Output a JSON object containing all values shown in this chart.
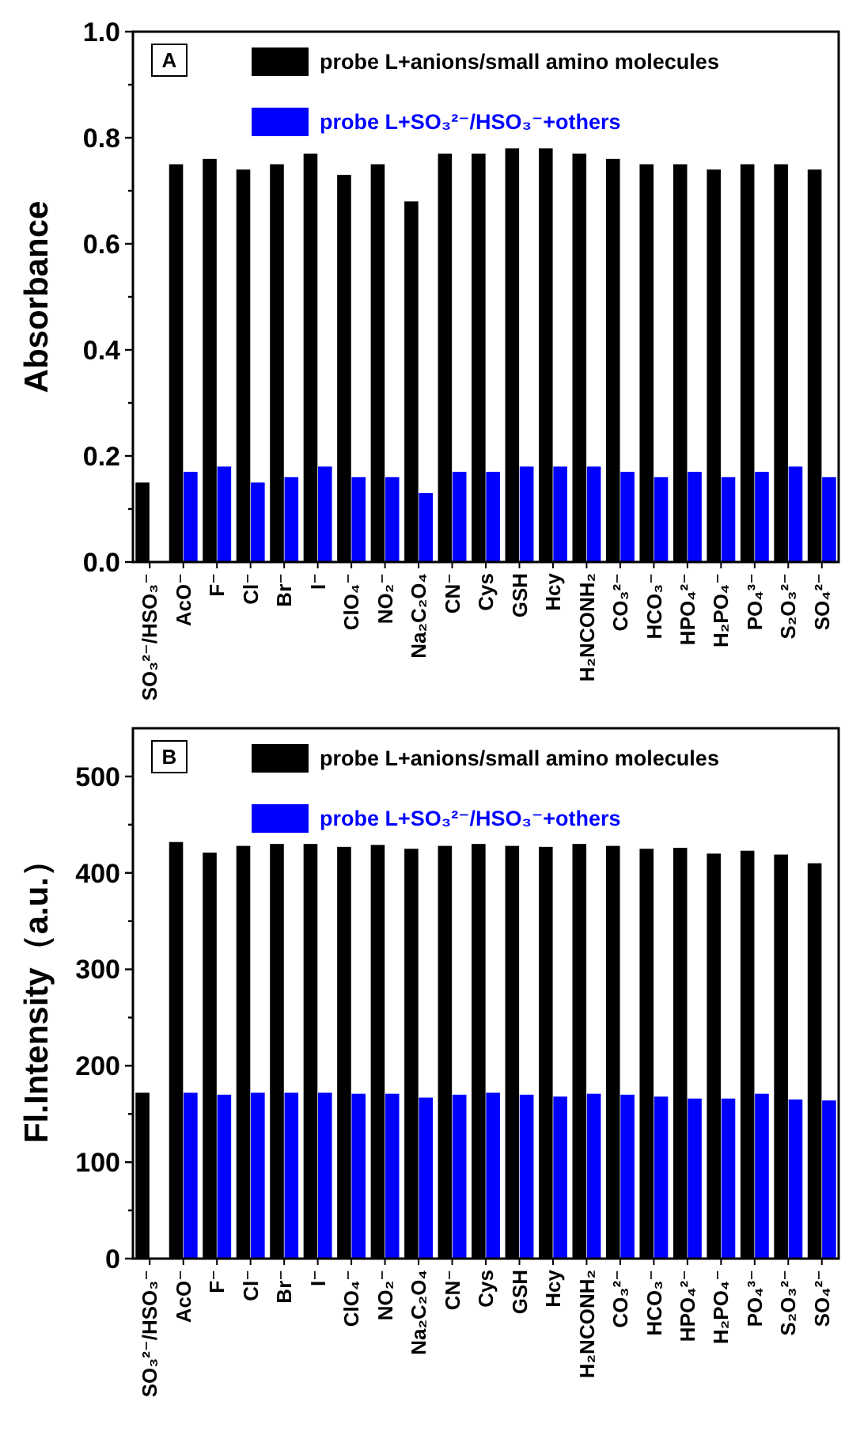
{
  "chart_data": [
    {
      "type": "bar",
      "ylabel": "Absorbance",
      "annotations": [
        "A"
      ],
      "legend": "top",
      "categories": [
        "SO₃²⁻/HSO₃⁻",
        "AcO⁻",
        "F⁻",
        "Cl⁻",
        "Br⁻",
        "I⁻",
        "ClO₄⁻",
        "NO₂⁻",
        "Na₂C₂O₄",
        "CN⁻",
        "Cys",
        "GSH",
        "Hcy",
        "H₂NCONH₂",
        "CO₃²⁻",
        "HCO₃⁻",
        "HPO₄²⁻",
        "H₂PO₄⁻",
        "PO₄³⁻",
        "S₂O₃²⁻",
        "SO₄²⁻"
      ],
      "series": [
        {
          "name": "probe L+anions/small amino molecules",
          "color": "#000000",
          "values": [
            0.15,
            0.75,
            0.76,
            0.74,
            0.75,
            0.77,
            0.73,
            0.75,
            0.68,
            0.77,
            0.77,
            0.78,
            0.78,
            0.77,
            0.76,
            0.75,
            0.75,
            0.74,
            0.75,
            0.75,
            0.74
          ]
        },
        {
          "name": "probe L+SO₃²⁻/HSO₃⁻+others",
          "color": "#0000ff",
          "values": [
            null,
            0.17,
            0.18,
            0.15,
            0.16,
            0.18,
            0.16,
            0.16,
            0.13,
            0.17,
            0.17,
            0.18,
            0.18,
            0.18,
            0.17,
            0.16,
            0.17,
            0.16,
            0.17,
            0.18,
            0.16
          ]
        }
      ],
      "ylim": [
        0,
        1
      ],
      "yticks": [
        {
          "value": 0,
          "label": "0.0"
        },
        {
          "value": 0.1,
          "label": null
        },
        {
          "value": 0.2,
          "label": "0.2"
        },
        {
          "value": 0.3,
          "label": null
        },
        {
          "value": 0.4,
          "label": "0.4"
        },
        {
          "value": 0.5,
          "label": null
        },
        {
          "value": 0.6,
          "label": "0.6"
        },
        {
          "value": 0.7,
          "label": null
        },
        {
          "value": 0.8,
          "label": "0.8"
        },
        {
          "value": 0.9,
          "label": null
        },
        {
          "value": 1,
          "label": "1.0"
        }
      ]
    },
    {
      "type": "bar",
      "ylabel": "Fl.Intensity（a.u.）",
      "annotations": [
        "B"
      ],
      "legend": "top",
      "categories": [
        "SO₃²⁻/HSO₃⁻",
        "AcO⁻",
        "F⁻",
        "Cl⁻",
        "Br⁻",
        "I⁻",
        "ClO₄⁻",
        "NO₂⁻",
        "Na₂C₂O₄",
        "CN⁻",
        "Cys",
        "GSH",
        "Hcy",
        "H₂NCONH₂",
        "CO₃²⁻",
        "HCO₃⁻",
        "HPO₄²⁻",
        "H₂PO₄⁻",
        "PO₄³⁻",
        "S₂O₃²⁻",
        "SO₄²⁻"
      ],
      "series": [
        {
          "name": "probe L+anions/small amino molecules",
          "color": "#000000",
          "values": [
            172,
            432,
            421,
            428,
            430,
            430,
            427,
            429,
            425,
            428,
            430,
            428,
            427,
            430,
            428,
            425,
            426,
            420,
            423,
            419,
            410
          ]
        },
        {
          "name": "probe L+SO₃²⁻/HSO₃⁻+others",
          "color": "#0000ff",
          "values": [
            null,
            172,
            170,
            172,
            172,
            172,
            171,
            171,
            167,
            170,
            172,
            170,
            168,
            171,
            170,
            168,
            166,
            166,
            171,
            165,
            164
          ]
        }
      ],
      "ylim": [
        0,
        550
      ],
      "yticks": [
        0,
        {
          "value": 50,
          "label": null
        },
        100,
        {
          "value": 150,
          "label": null
        },
        200,
        {
          "value": 250,
          "label": null
        },
        300,
        {
          "value": 350,
          "label": null
        },
        400,
        {
          "value": 450,
          "label": null
        },
        500
      ]
    }
  ]
}
